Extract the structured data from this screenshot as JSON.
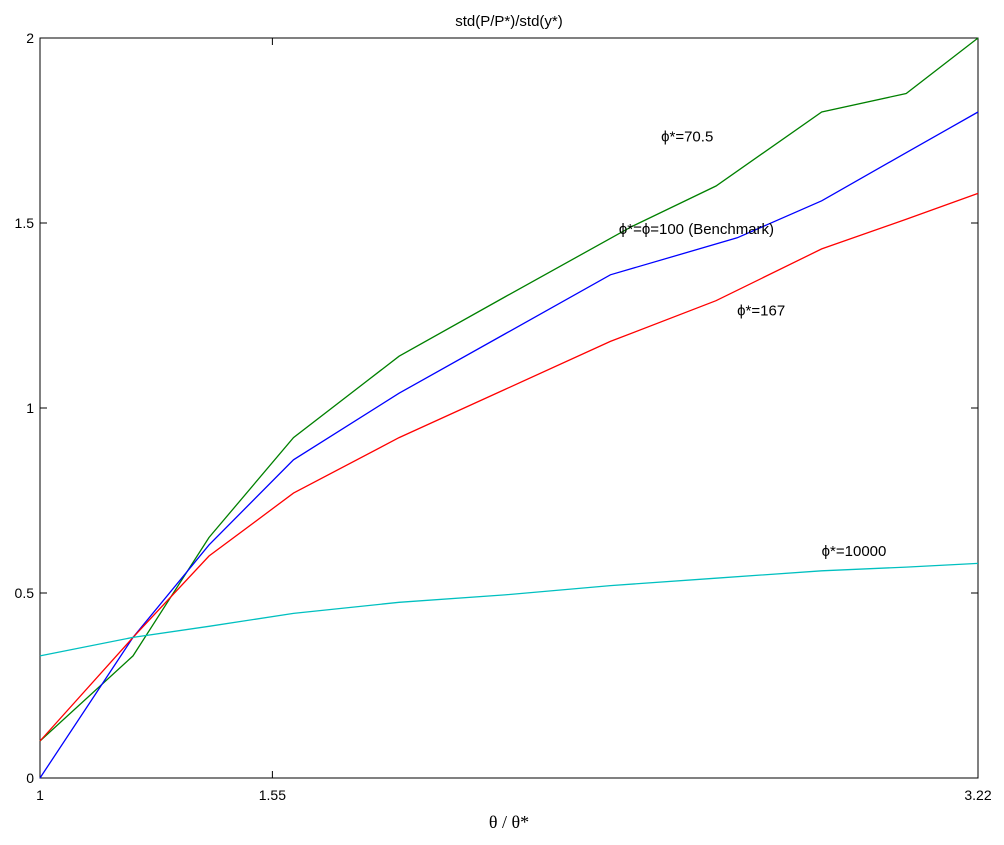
{
  "chart_data": {
    "type": "line",
    "title": "std(P/P*)/std(y*)",
    "xlabel": "θ / θ*",
    "ylabel": "",
    "xlim": [
      1,
      3.22
    ],
    "ylim": [
      0,
      2
    ],
    "xticks": [
      1,
      1.55,
      3.22
    ],
    "xtick_labels": [
      "1",
      "1.55",
      "3.22"
    ],
    "yticks": [
      0,
      0.5,
      1,
      1.5,
      2
    ],
    "ytick_labels": [
      "0",
      "0.5",
      "1",
      "1.5",
      "2"
    ],
    "grid": false,
    "series": [
      {
        "color": "#008000",
        "x": [
          1,
          1.22,
          1.4,
          1.6,
          1.85,
          2.1,
          2.4,
          2.6,
          2.85,
          3.05,
          3.22
        ],
        "y": [
          0.1,
          0.33,
          0.65,
          0.92,
          1.14,
          1.3,
          1.49,
          1.6,
          1.8,
          1.85,
          2.0
        ]
      },
      {
        "color": "#0000ff",
        "x": [
          1,
          1.22,
          1.4,
          1.6,
          1.85,
          2.1,
          2.35,
          2.65,
          2.85,
          3.05,
          3.22
        ],
        "y": [
          0.0,
          0.38,
          0.63,
          0.86,
          1.04,
          1.2,
          1.36,
          1.46,
          1.56,
          1.69,
          1.8
        ]
      },
      {
        "color": "#ff0000",
        "x": [
          1,
          1.22,
          1.4,
          1.6,
          1.85,
          2.1,
          2.35,
          2.6,
          2.85,
          3.05,
          3.22
        ],
        "y": [
          0.1,
          0.38,
          0.6,
          0.77,
          0.92,
          1.05,
          1.18,
          1.29,
          1.43,
          1.51,
          1.58
        ]
      },
      {
        "color": "#00c0c0",
        "x": [
          1,
          1.22,
          1.4,
          1.6,
          1.85,
          2.1,
          2.35,
          2.6,
          2.85,
          3.05,
          3.22
        ],
        "y": [
          0.33,
          0.38,
          0.41,
          0.445,
          0.475,
          0.495,
          0.52,
          0.54,
          0.56,
          0.57,
          0.58
        ]
      }
    ],
    "annotations": [
      {
        "text": "ϕ*=70.5",
        "x": 2.47,
        "y": 1.72
      },
      {
        "text": "ϕ*=ϕ=100 (Benchmark)",
        "x": 2.37,
        "y": 1.47
      },
      {
        "text": "ϕ*=167",
        "x": 2.65,
        "y": 1.25
      },
      {
        "text": "ϕ*=10000",
        "x": 2.85,
        "y": 0.6
      }
    ]
  }
}
